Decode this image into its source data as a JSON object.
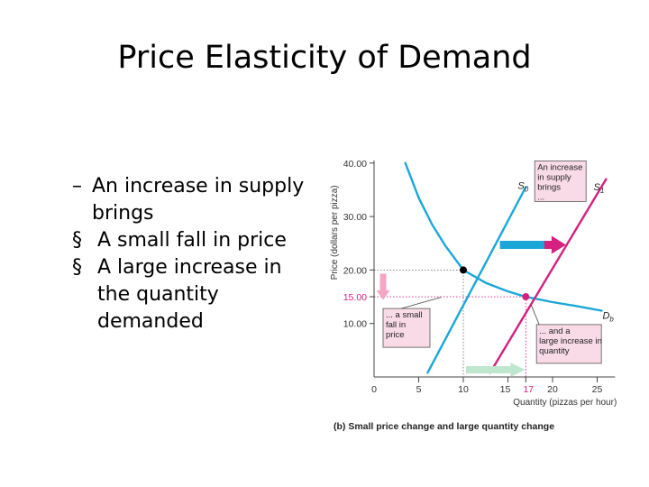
{
  "slide": {
    "title": "Price Elasticity of Demand"
  },
  "bullets": [
    {
      "marker": "–",
      "text": "An increase in supply brings"
    },
    {
      "marker": "§",
      "text": "A small fall in price"
    },
    {
      "marker": "§",
      "text": "A large increase in the quantity demanded"
    }
  ],
  "chart_data": {
    "type": "line",
    "ylabel": "Price (dollars per pizza)",
    "xlabel": "Quantity (pizzas per hour)",
    "caption": "(b) Small price change and large quantity change",
    "x_ticks": [
      "0",
      "5",
      "10",
      "15",
      "17",
      "20",
      "25"
    ],
    "y_ticks": [
      "10.00",
      "15.00",
      "20.00",
      "30.00",
      "40.00"
    ],
    "xlim": [
      0,
      27
    ],
    "ylim": [
      0,
      41
    ],
    "curves": [
      {
        "name": "D_b",
        "label": "D",
        "sub": "b",
        "color": "#1aa7d8",
        "points": [
          [
            3.5,
            40
          ],
          [
            5,
            33.5
          ],
          [
            6.5,
            28.5
          ],
          [
            8,
            24.5
          ],
          [
            10,
            20
          ],
          [
            12.5,
            17.6
          ],
          [
            15,
            16
          ],
          [
            17,
            15
          ],
          [
            20,
            14
          ],
          [
            22.5,
            13.3
          ],
          [
            25.5,
            12.4
          ]
        ]
      },
      {
        "name": "S_0",
        "label": "S",
        "sub": "0",
        "color": "#1aa7d8",
        "points": [
          [
            6,
            0.8
          ],
          [
            17,
            35.5
          ]
        ]
      },
      {
        "name": "S_1",
        "label": "S",
        "sub": "1",
        "color": "#d4207e",
        "points": [
          [
            13,
            0.8
          ],
          [
            26,
            37
          ]
        ]
      }
    ],
    "equilibria": [
      {
        "name": "initial",
        "x": 10,
        "y": 20,
        "color": "#000000"
      },
      {
        "name": "new",
        "x": 17,
        "y": 15,
        "color": "#d4207e"
      }
    ],
    "annotations": {
      "supply_box": "An increase in supply brings ...",
      "price_box": "... a small fall in price ...",
      "quantity_box": "... and a large increase in quantity"
    },
    "colors": {
      "demand": "#1aa7d8",
      "supply0": "#1aa7d8",
      "supply1": "#d4207e",
      "highlight": "#d4207e",
      "box_fill": "#f9dbe7",
      "arrow_blue": "#1aa7d8",
      "arrow_pink": "#f3a7c4",
      "arrow_green": "#bfe6cf",
      "axis": "#444444"
    }
  }
}
